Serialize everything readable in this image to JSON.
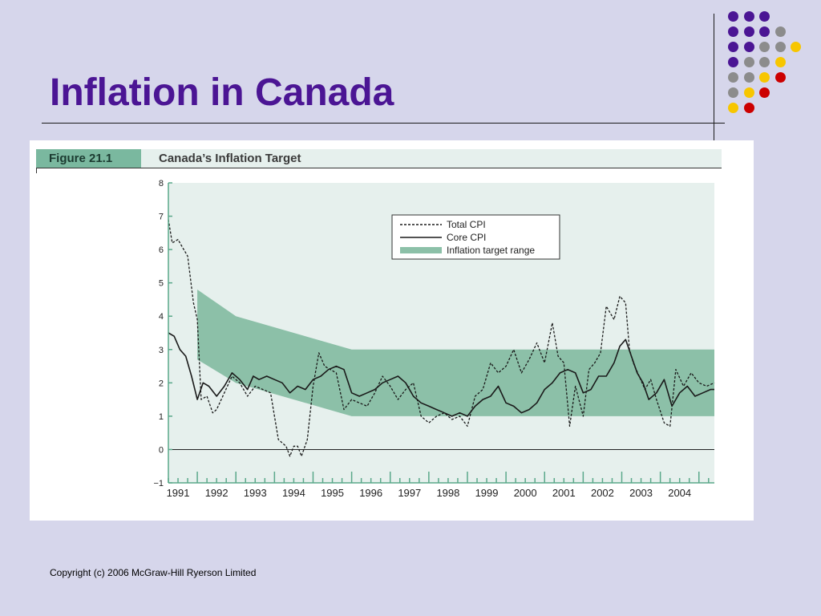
{
  "slide": {
    "title": "Inflation in Canada",
    "copyright": "Copyright (c) 2006 McGraw-Hill Ryerson Limited"
  },
  "decor": {
    "colors": {
      "background": "#d6d6eb",
      "title": "#4b1594",
      "purple": "#4b1594",
      "gray": "#8c8c8c",
      "yellow": "#f7c600",
      "red": "#cc0000"
    },
    "dot_grid": [
      [
        "purple",
        "purple",
        "purple",
        null
      ],
      [
        "purple",
        "purple",
        "purple",
        "gray"
      ],
      [
        "purple",
        "purple",
        "gray",
        "gray",
        "yellow"
      ],
      [
        "purple",
        "gray",
        "gray",
        "yellow"
      ],
      [
        "gray",
        "gray",
        "yellow",
        "red"
      ],
      [
        "gray",
        "yellow",
        "red"
      ],
      [
        "yellow",
        "red"
      ]
    ]
  },
  "figure": {
    "label": "Figure 21.1",
    "title": "Canada’s Inflation Target",
    "colors": {
      "header_band": "#e6f0ed",
      "label_bg": "#7ab89f",
      "plot_bg": "#e6f0ed",
      "target_band": "#8cc0a8",
      "tick": "#5aa88a",
      "line": "#1a1a1a"
    }
  },
  "chart_data": {
    "type": "line",
    "title": "Canada’s Inflation Target",
    "xlabel": "",
    "ylabel": "",
    "xlim": [
      1990.75,
      2004.9
    ],
    "ylim": [
      -1,
      8
    ],
    "y_ticks": [
      -1,
      0,
      1,
      2,
      3,
      4,
      5,
      6,
      7,
      8
    ],
    "x_tick_labels": [
      "1991",
      "1992",
      "1993",
      "1994",
      "1995",
      "1996",
      "1997",
      "1998",
      "1999",
      "2000",
      "2001",
      "2002",
      "2003",
      "2004"
    ],
    "grid": false,
    "legend_position": "top-right",
    "legend": [
      "Total CPI",
      "Core CPI",
      "Inflation target range"
    ],
    "target_range": {
      "name": "Inflation target range",
      "x": [
        1991.5,
        1992.5,
        1995.5,
        2004.9
      ],
      "upper": [
        4.8,
        4.0,
        3.0,
        3.0
      ],
      "lower": [
        2.7,
        2.0,
        1.0,
        1.0
      ]
    },
    "series": [
      {
        "name": "Total CPI",
        "style": "dashed",
        "x": [
          1990.75,
          1990.85,
          1991.0,
          1991.1,
          1991.25,
          1991.4,
          1991.5,
          1991.6,
          1991.75,
          1991.9,
          1992.0,
          1992.2,
          1992.4,
          1992.6,
          1992.8,
          1993.0,
          1993.2,
          1993.4,
          1993.6,
          1993.8,
          1993.9,
          1994.0,
          1994.1,
          1994.2,
          1994.35,
          1994.5,
          1994.65,
          1994.8,
          1994.95,
          1995.1,
          1995.3,
          1995.5,
          1995.7,
          1995.9,
          1996.1,
          1996.3,
          1996.5,
          1996.7,
          1996.9,
          1997.1,
          1997.3,
          1997.5,
          1997.7,
          1997.9,
          1998.1,
          1998.3,
          1998.5,
          1998.7,
          1998.9,
          1999.1,
          1999.3,
          1999.5,
          1999.7,
          1999.9,
          2000.1,
          2000.3,
          2000.5,
          2000.7,
          2000.85,
          2001.0,
          2001.15,
          2001.3,
          2001.5,
          2001.65,
          2001.8,
          2001.95,
          2002.1,
          2002.3,
          2002.45,
          2002.6,
          2002.7,
          2002.8,
          2002.95,
          2003.1,
          2003.25,
          2003.4,
          2003.6,
          2003.75,
          2003.9,
          2004.1,
          2004.3,
          2004.5,
          2004.7,
          2004.9
        ],
        "values": [
          6.9,
          6.2,
          6.3,
          6.1,
          5.8,
          4.4,
          3.9,
          1.5,
          1.6,
          1.1,
          1.2,
          1.7,
          2.2,
          2.0,
          1.6,
          1.9,
          1.8,
          1.7,
          0.3,
          0.1,
          -0.2,
          0.1,
          0.1,
          -0.2,
          0.3,
          1.9,
          2.9,
          2.5,
          2.4,
          2.3,
          1.2,
          1.5,
          1.4,
          1.3,
          1.7,
          2.2,
          1.9,
          1.5,
          1.8,
          2.0,
          1.0,
          0.8,
          1.0,
          1.1,
          0.9,
          1.0,
          0.7,
          1.6,
          1.8,
          2.6,
          2.3,
          2.5,
          3.0,
          2.3,
          2.7,
          3.2,
          2.6,
          3.8,
          2.8,
          2.6,
          0.7,
          1.9,
          1.0,
          2.4,
          2.6,
          2.9,
          4.3,
          3.9,
          4.6,
          4.4,
          3.0,
          2.6,
          2.2,
          1.8,
          2.1,
          1.5,
          0.8,
          0.7,
          2.4,
          1.9,
          2.3,
          2.0,
          1.9,
          2.0
        ]
      },
      {
        "name": "Core CPI",
        "style": "solid",
        "x": [
          1990.75,
          1990.9,
          1991.05,
          1991.2,
          1991.35,
          1991.5,
          1991.65,
          1991.8,
          1992.0,
          1992.2,
          1992.4,
          1992.6,
          1992.8,
          1992.95,
          1993.1,
          1993.3,
          1993.5,
          1993.7,
          1993.9,
          1994.1,
          1994.3,
          1994.5,
          1994.7,
          1994.9,
          1995.1,
          1995.3,
          1995.5,
          1995.7,
          1995.9,
          1996.1,
          1996.3,
          1996.5,
          1996.7,
          1996.9,
          1997.1,
          1997.3,
          1997.5,
          1997.7,
          1997.9,
          1998.1,
          1998.3,
          1998.5,
          1998.7,
          1998.9,
          1999.1,
          1999.3,
          1999.5,
          1999.7,
          1999.9,
          2000.1,
          2000.3,
          2000.5,
          2000.7,
          2000.9,
          2001.1,
          2001.3,
          2001.5,
          2001.7,
          2001.9,
          2002.1,
          2002.3,
          2002.45,
          2002.6,
          2002.75,
          2002.9,
          2003.05,
          2003.2,
          2003.4,
          2003.6,
          2003.8,
          2004.0,
          2004.2,
          2004.4,
          2004.6,
          2004.8,
          2004.9
        ],
        "values": [
          3.5,
          3.4,
          3.0,
          2.8,
          2.2,
          1.5,
          2.0,
          1.9,
          1.6,
          1.9,
          2.3,
          2.1,
          1.8,
          2.2,
          2.1,
          2.2,
          2.1,
          2.0,
          1.7,
          1.9,
          1.8,
          2.1,
          2.2,
          2.4,
          2.5,
          2.4,
          1.7,
          1.6,
          1.7,
          1.8,
          2.0,
          2.1,
          2.2,
          2.0,
          1.6,
          1.4,
          1.3,
          1.2,
          1.1,
          1.0,
          1.1,
          1.0,
          1.3,
          1.5,
          1.6,
          1.9,
          1.4,
          1.3,
          1.1,
          1.2,
          1.4,
          1.8,
          2.0,
          2.3,
          2.4,
          2.3,
          1.7,
          1.8,
          2.2,
          2.2,
          2.6,
          3.1,
          3.3,
          2.8,
          2.3,
          2.0,
          1.5,
          1.7,
          2.1,
          1.3,
          1.7,
          1.9,
          1.6,
          1.7,
          1.8,
          1.8
        ]
      }
    ]
  }
}
